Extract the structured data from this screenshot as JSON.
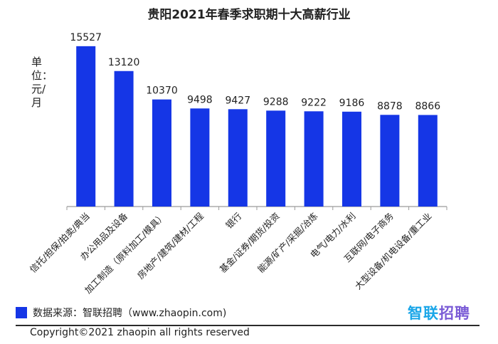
{
  "chart_data": {
    "type": "bar",
    "title": "贵阳2021年春季求职期十大高薪行业",
    "ylabel": "单位：元/月",
    "categories": [
      "信托/担保/拍卖/典当",
      "办公用品及设备",
      "加工制造（原料加工/模具）",
      "房地产/建筑/建材/工程",
      "银行",
      "基金/证券/期货/投资",
      "能源/矿产/采掘/冶炼",
      "电气/电力/水利",
      "互联网/电子商务",
      "大型设备/机电设备/重工业"
    ],
    "values": [
      15527,
      13120,
      10370,
      9498,
      9427,
      9288,
      9222,
      9186,
      8878,
      8866
    ],
    "ylim": [
      0,
      16000
    ],
    "grid": false,
    "bar_color": "#1536e6",
    "axis_color": "#9a9a9a"
  },
  "source": "数据来源：智联招聘（www.zhaopin.com)",
  "logo": {
    "text": "智联招聘",
    "colors": [
      "#1aa6e8",
      "#7a5bd6"
    ]
  },
  "copyright": "Copyright©2021 zhaopin all rights reserved"
}
